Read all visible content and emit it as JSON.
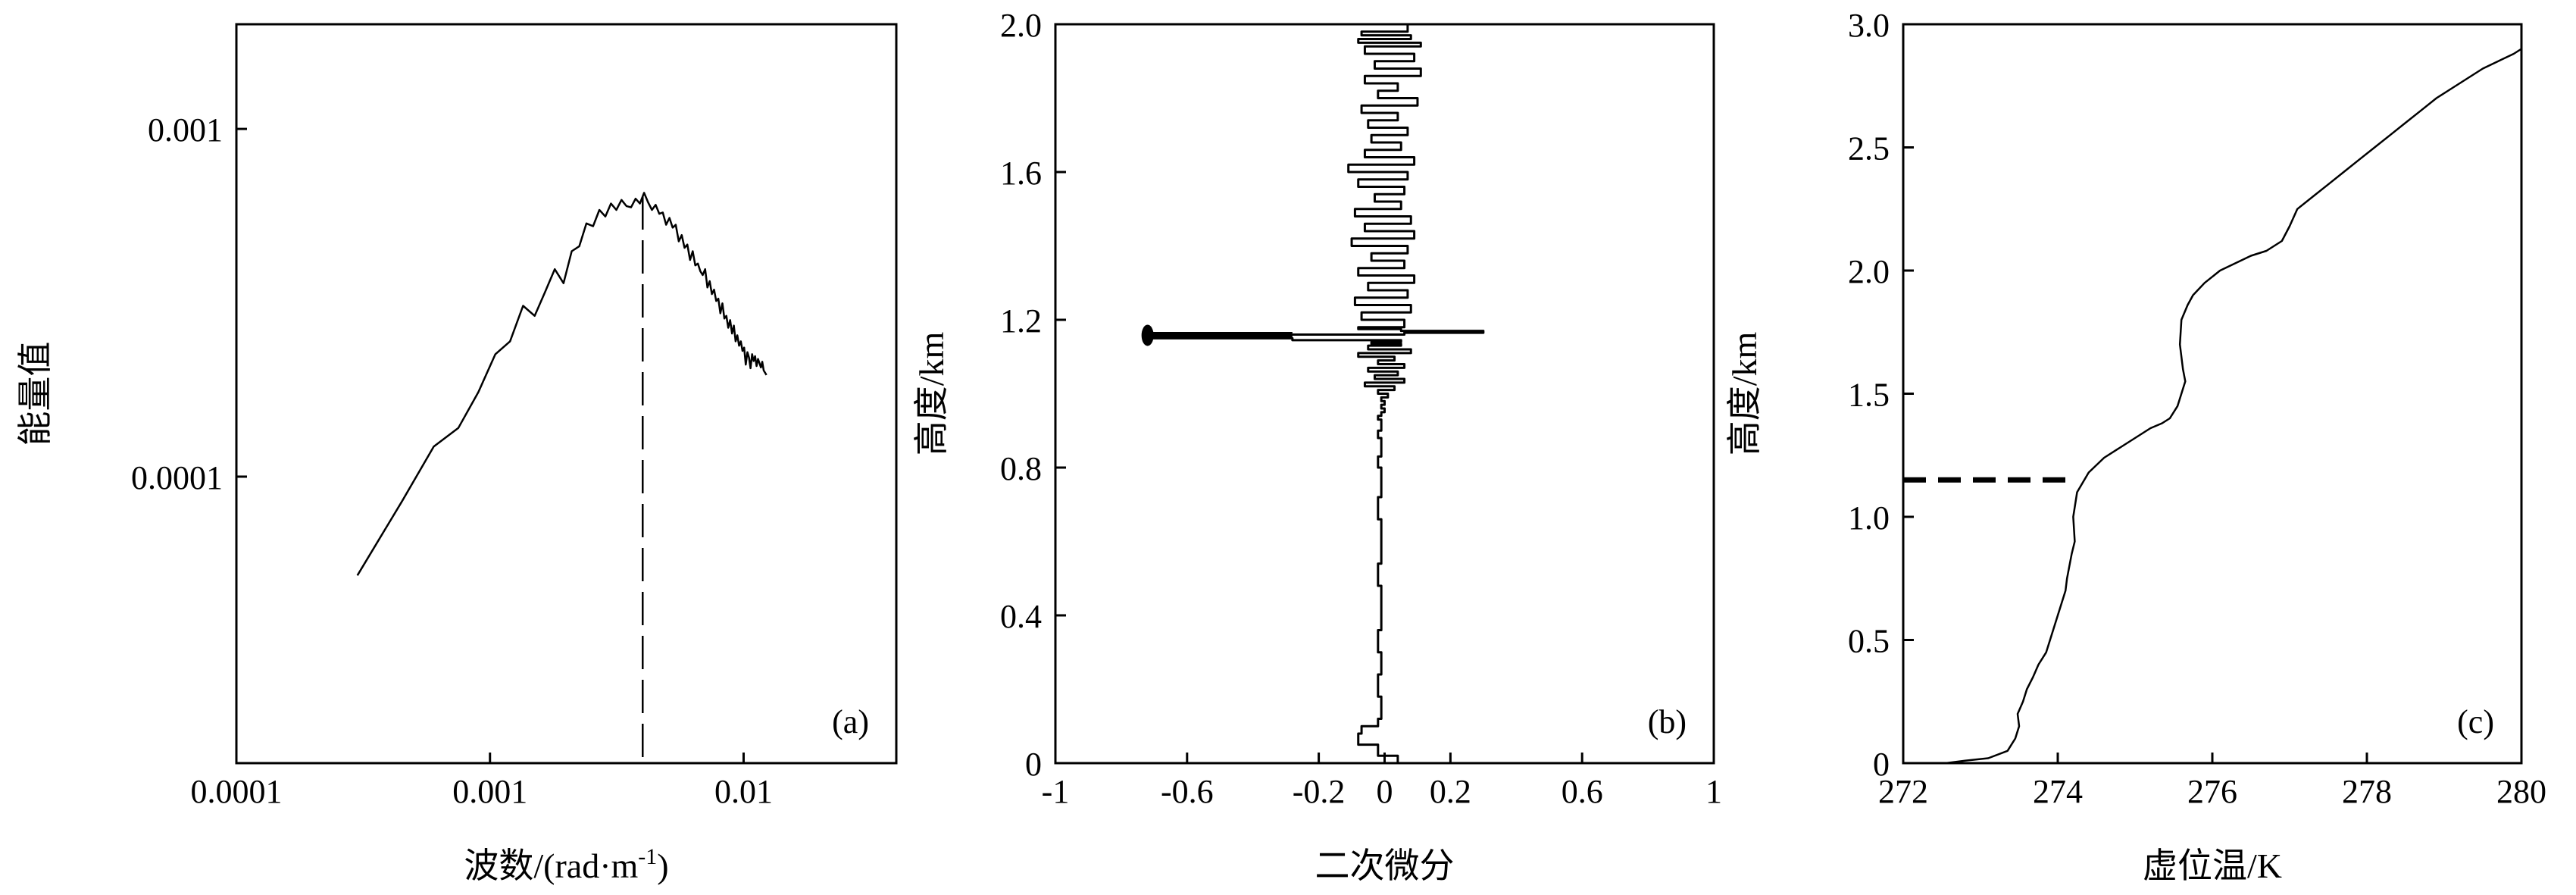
{
  "colors": {
    "line": "#000000",
    "background": "#ffffff"
  },
  "chart_data": [
    {
      "id": "a",
      "type": "line",
      "panel_label": "(a)",
      "xlabel_prefix": "波数/(rad·m",
      "xlabel_sup": "-1",
      "xlabel_suffix": ")",
      "ylabel": "能量值",
      "x_scale": "log",
      "y_scale": "log",
      "xlim": [
        0.0001,
        0.04
      ],
      "ylim": [
        1.5e-05,
        0.002
      ],
      "x_ticks": [
        0.0001,
        0.001,
        0.01
      ],
      "x_tick_labels": [
        "0.0001",
        "0.001",
        "0.01"
      ],
      "y_ticks": [
        0.0001,
        0.001
      ],
      "y_tick_labels": [
        "0.0001",
        "0.001"
      ],
      "vline_x": 0.004,
      "series": [
        {
          "x": [
            0.0003,
            0.00045,
            0.0006,
            0.00075,
            0.0009,
            0.00105,
            0.0012,
            0.00135,
            0.0015,
            0.00165,
            0.0018,
            0.00195,
            0.0021,
            0.00225,
            0.0024,
            0.00255,
            0.0027,
            0.00285,
            0.003,
            0.00315,
            0.0033,
            0.00345,
            0.0036,
            0.00375,
            0.0039,
            0.00405,
            0.0042,
            0.00435,
            0.0045,
            0.00465,
            0.0048,
            0.00495,
            0.0051,
            0.00525,
            0.0054,
            0.00555,
            0.0057,
            0.00585,
            0.006,
            0.00615,
            0.0063,
            0.00645,
            0.0066,
            0.00675,
            0.0069,
            0.00705,
            0.0072,
            0.00735,
            0.0075,
            0.00765,
            0.0078,
            0.00795,
            0.0081,
            0.00825,
            0.0084,
            0.00855,
            0.0087,
            0.00885,
            0.009,
            0.00915,
            0.0093,
            0.00945,
            0.0096,
            0.00975,
            0.0099,
            0.01005,
            0.0102,
            0.01035,
            0.0105,
            0.01065,
            0.0108,
            0.01095,
            0.0111,
            0.01125,
            0.0114,
            0.01155,
            0.0117,
            0.01185,
            0.012,
            0.01215,
            0.0123
          ],
          "y": [
            5.2e-05,
            8.5e-05,
            0.000122,
            0.000138,
            0.000175,
            0.000225,
            0.000245,
            0.00031,
            0.00029,
            0.00034,
            0.000395,
            0.00036,
            0.000445,
            0.00046,
            0.000535,
            0.000525,
            0.000585,
            0.00056,
            0.00061,
            0.000585,
            0.000625,
            0.0006,
            0.000595,
            0.00063,
            0.00061,
            0.000655,
            0.000615,
            0.000585,
            0.000605,
            0.00057,
            0.000575,
            0.00053,
            0.000555,
            0.00052,
            0.00053,
            0.000475,
            0.000495,
            0.000455,
            0.000465,
            0.00042,
            0.000445,
            0.000405,
            0.00041,
            0.00039,
            0.00038,
            0.000395,
            0.00035,
            0.000365,
            0.000335,
            0.000345,
            0.00032,
            0.000325,
            0.000295,
            0.000315,
            0.000285,
            0.00029,
            0.000268,
            0.000282,
            0.000258,
            0.000272,
            0.000245,
            0.000255,
            0.000238,
            0.000245,
            0.00023,
            0.000235,
            0.00021,
            0.000228,
            0.00022,
            0.000205,
            0.000225,
            0.000215,
            0.000222,
            0.000208,
            0.000218,
            0.000212,
            0.000206,
            0.000214,
            0.000202,
            0.000199,
            0.000196
          ]
        }
      ]
    },
    {
      "id": "b",
      "type": "line",
      "panel_label": "(b)",
      "xlabel": "二次微分",
      "ylabel": "高度/km",
      "xlim": [
        -1,
        1
      ],
      "ylim": [
        0,
        2
      ],
      "x_ticks": [
        -1,
        -0.6,
        -0.2,
        0,
        0.2,
        0.6,
        1
      ],
      "x_tick_labels": [
        "-1",
        "-0.6",
        "-0.2",
        "0",
        "0.2",
        "0.6",
        "1"
      ],
      "y_ticks": [
        0,
        0.4,
        0.8,
        1.2,
        1.6,
        2.0
      ],
      "y_tick_labels": [
        "0",
        "0.4",
        "0.8",
        "1.2",
        "1.6",
        "2.0"
      ],
      "series": [
        {
          "x": [
            0.06,
            0.04,
            -0.02,
            -0.08,
            -0.07,
            -0.02,
            -0.01,
            -0.02,
            -0.01,
            -0.02,
            -0.01,
            -0.01,
            -0.02,
            -0.01,
            -0.01,
            -0.02,
            -0.01,
            -0.01,
            -0.02,
            -0.01,
            -0.01,
            -0.02,
            -0.01,
            -0.01,
            -0.02,
            -0.01,
            0.0,
            -0.01,
            0.0,
            -0.01,
            0.01,
            -0.02,
            0.03,
            -0.06,
            0.06,
            -0.03,
            0.04,
            -0.05,
            0.06,
            -0.02,
            0.03,
            -0.08,
            0.08,
            -0.05,
            0.05,
            -0.04,
            0.05,
            -0.28,
            -0.72,
            -0.72,
            0.06,
            0.3,
            0.05,
            -0.08,
            0.06,
            -0.07,
            0.08,
            -0.09,
            0.07,
            -0.05,
            0.09,
            -0.08,
            0.06,
            -0.04,
            0.07,
            -0.1,
            0.09,
            -0.06,
            0.08,
            -0.09,
            0.05,
            -0.03,
            0.06,
            -0.08,
            0.07,
            -0.11,
            0.09,
            -0.06,
            0.05,
            -0.04,
            0.07,
            -0.05,
            0.04,
            -0.07,
            0.1,
            -0.02,
            0.04,
            -0.06,
            0.11,
            -0.03,
            0.09,
            -0.06,
            0.11,
            -0.08,
            0.08,
            -0.07,
            0.07
          ],
          "y": [
            0.0,
            0.02,
            0.05,
            0.08,
            0.1,
            0.12,
            0.18,
            0.24,
            0.3,
            0.36,
            0.42,
            0.48,
            0.54,
            0.6,
            0.66,
            0.72,
            0.76,
            0.8,
            0.83,
            0.86,
            0.88,
            0.9,
            0.92,
            0.93,
            0.94,
            0.95,
            0.96,
            0.97,
            0.98,
            0.99,
            1.0,
            1.01,
            1.02,
            1.03,
            1.04,
            1.05,
            1.06,
            1.07,
            1.08,
            1.09,
            1.1,
            1.11,
            1.12,
            1.13,
            1.135,
            1.14,
            1.145,
            1.15,
            1.155,
            1.16,
            1.165,
            1.17,
            1.175,
            1.18,
            1.2,
            1.22,
            1.24,
            1.26,
            1.28,
            1.3,
            1.32,
            1.34,
            1.36,
            1.38,
            1.4,
            1.42,
            1.44,
            1.46,
            1.48,
            1.5,
            1.52,
            1.54,
            1.56,
            1.58,
            1.6,
            1.62,
            1.64,
            1.66,
            1.68,
            1.7,
            1.72,
            1.74,
            1.76,
            1.78,
            1.8,
            1.82,
            1.84,
            1.86,
            1.88,
            1.9,
            1.92,
            1.94,
            1.95,
            1.96,
            1.97,
            1.98,
            2.0
          ]
        }
      ]
    },
    {
      "id": "c",
      "type": "line",
      "panel_label": "(c)",
      "xlabel": "虚位温/K",
      "ylabel": "高度/km",
      "xlim": [
        272,
        280
      ],
      "ylim": [
        0,
        3.0
      ],
      "x_ticks": [
        272,
        274,
        276,
        278,
        280
      ],
      "x_tick_labels": [
        "272",
        "274",
        "276",
        "278",
        "280"
      ],
      "y_ticks": [
        0,
        0.5,
        1.0,
        1.5,
        2.0,
        2.5,
        3.0
      ],
      "y_tick_labels": [
        "0",
        "0.5",
        "1.0",
        "1.5",
        "2.0",
        "2.5",
        "3.0"
      ],
      "hline_y": 1.15,
      "series": [
        {
          "x": [
            272.55,
            272.8,
            273.1,
            273.35,
            273.45,
            273.5,
            273.48,
            273.55,
            273.6,
            273.68,
            273.75,
            273.85,
            273.9,
            273.95,
            274.0,
            274.05,
            274.1,
            274.12,
            274.15,
            274.18,
            274.22,
            274.2,
            274.25,
            274.4,
            274.6,
            274.8,
            275.0,
            275.2,
            275.35,
            275.45,
            275.55,
            275.6,
            275.65,
            275.62,
            275.58,
            275.6,
            275.68,
            275.75,
            275.9,
            276.1,
            276.3,
            276.5,
            276.7,
            276.9,
            277.0,
            277.1,
            277.3,
            277.5,
            277.7,
            277.9,
            278.1,
            278.3,
            278.5,
            278.7,
            278.9,
            279.1,
            279.3,
            279.5,
            279.7,
            279.9,
            280.0
          ],
          "y": [
            0.0,
            0.01,
            0.02,
            0.05,
            0.1,
            0.15,
            0.2,
            0.25,
            0.3,
            0.35,
            0.4,
            0.45,
            0.5,
            0.55,
            0.6,
            0.65,
            0.7,
            0.75,
            0.8,
            0.85,
            0.9,
            1.0,
            1.1,
            1.18,
            1.24,
            1.28,
            1.32,
            1.36,
            1.38,
            1.4,
            1.45,
            1.5,
            1.55,
            1.6,
            1.7,
            1.8,
            1.86,
            1.9,
            1.95,
            2.0,
            2.03,
            2.06,
            2.08,
            2.12,
            2.18,
            2.25,
            2.3,
            2.35,
            2.4,
            2.45,
            2.5,
            2.55,
            2.6,
            2.65,
            2.7,
            2.74,
            2.78,
            2.82,
            2.85,
            2.88,
            2.9
          ]
        }
      ]
    }
  ]
}
